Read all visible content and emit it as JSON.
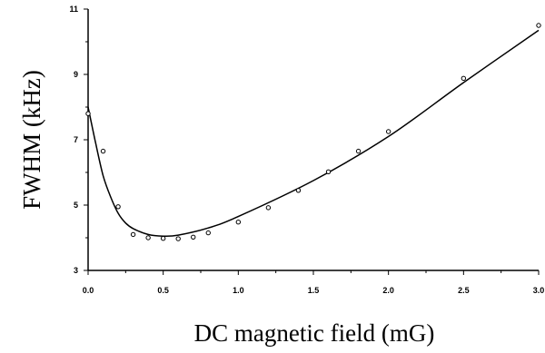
{
  "chart_data": {
    "type": "scatter",
    "title": "",
    "xlabel": "DC magnetic field (mG)",
    "ylabel": "FWHM (kHz)",
    "xlim": [
      0.0,
      3.0
    ],
    "ylim": [
      3,
      11
    ],
    "x_ticks": [
      "0.0",
      "0.5",
      "1.0",
      "1.5",
      "2.0",
      "2.5",
      "3.0"
    ],
    "y_ticks": [
      "3",
      "5",
      "7",
      "9",
      "11"
    ],
    "grid": false,
    "legend": "none",
    "series": [
      {
        "marker": "open-circle",
        "x": [
          0.0,
          0.1,
          0.2,
          0.3,
          0.4,
          0.5,
          0.6,
          0.7,
          0.8,
          1.0,
          1.2,
          1.4,
          1.6,
          1.8,
          2.0,
          2.5,
          3.0
        ],
        "y": [
          7.8,
          6.65,
          4.95,
          4.1,
          4.0,
          3.98,
          3.97,
          4.02,
          4.15,
          4.48,
          4.92,
          5.45,
          6.02,
          6.65,
          7.25,
          8.88,
          10.5
        ]
      },
      {
        "line": "fit-curve",
        "x": [
          0.0,
          0.05,
          0.1,
          0.15,
          0.2,
          0.25,
          0.3,
          0.4,
          0.5,
          0.6,
          0.8,
          1.0,
          1.5,
          2.0,
          2.5,
          3.0
        ],
        "y": [
          8.0,
          6.9,
          5.9,
          5.25,
          4.75,
          4.45,
          4.28,
          4.1,
          4.05,
          4.08,
          4.3,
          4.65,
          5.75,
          7.1,
          8.75,
          10.35
        ]
      }
    ],
    "colors": {
      "axis": "#000000",
      "marker": "#000000",
      "line": "#000000"
    }
  }
}
